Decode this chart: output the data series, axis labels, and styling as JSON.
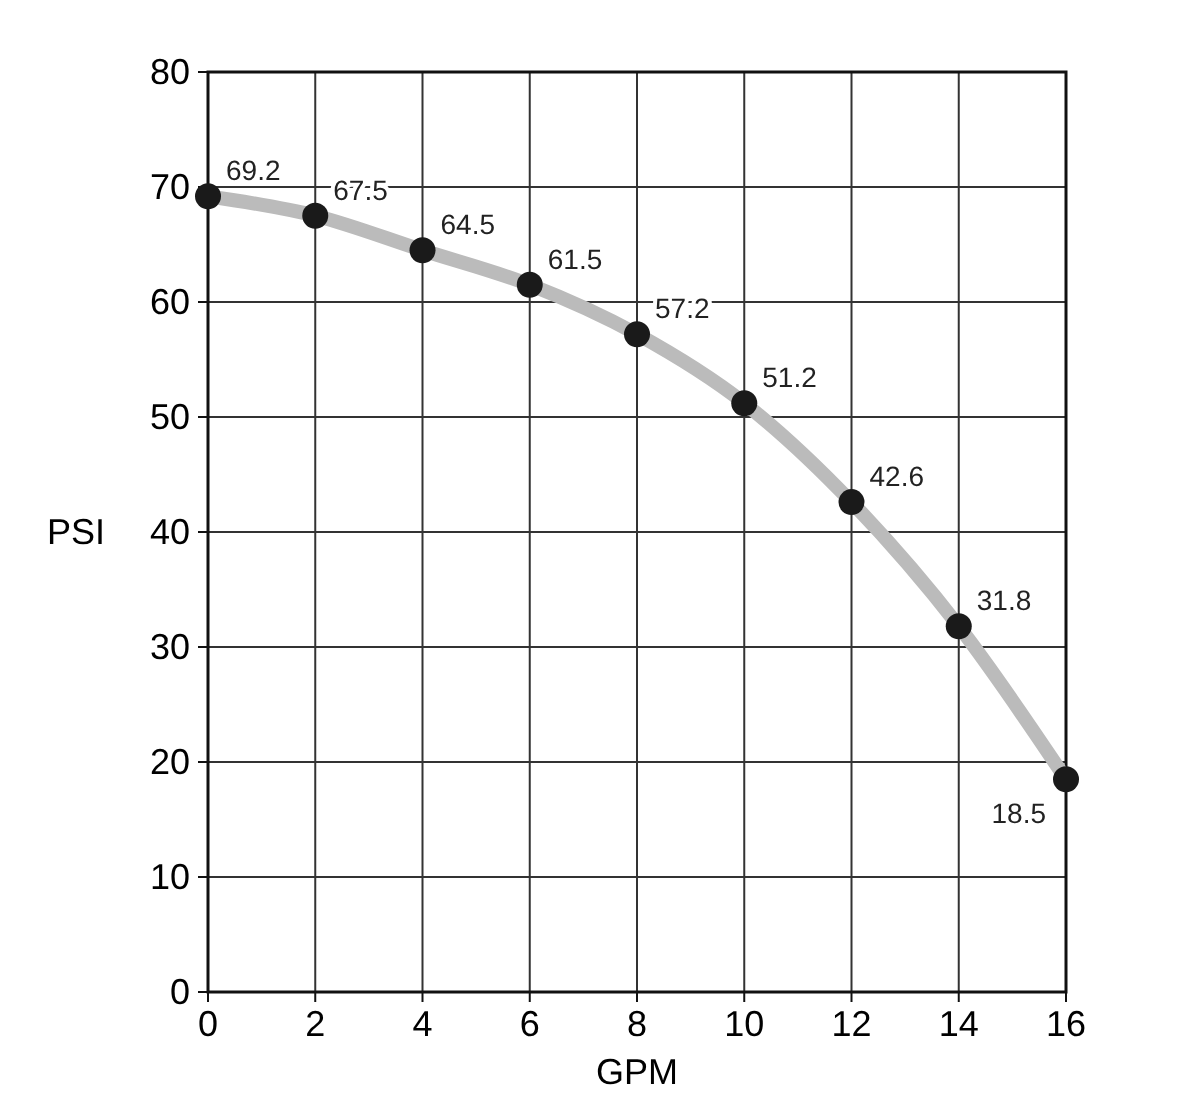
{
  "chart_data": {
    "type": "line",
    "xlabel": "GPM",
    "ylabel": "PSI",
    "x": [
      0,
      2,
      4,
      6,
      8,
      10,
      12,
      14,
      16
    ],
    "series": [
      {
        "color": "#bbbbbb",
        "values": [
          69.2,
          67.5,
          64.5,
          61.5,
          57.2,
          51.2,
          42.6,
          31.8,
          18.5
        ]
      }
    ],
    "xlim": [
      0,
      16
    ],
    "xticks": [
      0,
      2,
      4,
      6,
      8,
      10,
      12,
      14,
      16
    ],
    "ylim": [
      0,
      80
    ],
    "yticks": [
      0,
      10,
      20,
      30,
      40,
      50,
      60,
      70,
      80
    ],
    "grid": true,
    "marker": "circle",
    "data_labels": true,
    "line_style": "solid"
  }
}
